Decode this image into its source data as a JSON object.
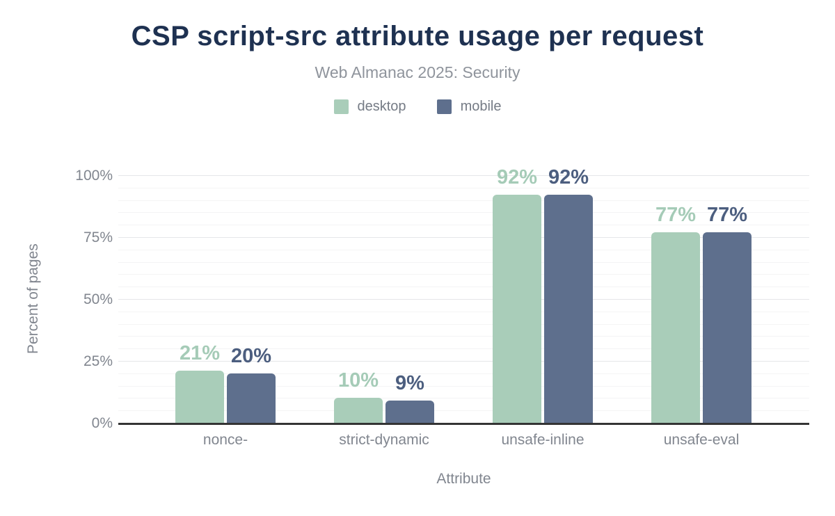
{
  "header": {
    "title": "CSP script-src attribute usage per request",
    "subtitle": "Web Almanac 2025: Security"
  },
  "legend": [
    {
      "label": "desktop",
      "color": "#a9cdb9"
    },
    {
      "label": "mobile",
      "color": "#5e6f8d"
    }
  ],
  "axes": {
    "xlabel": "Attribute",
    "ylabel": "Percent of pages"
  },
  "chart_data": {
    "type": "bar",
    "title": "CSP script-src attribute usage per request",
    "subtitle": "Web Almanac 2025: Security",
    "categories": [
      "nonce-",
      "strict-dynamic",
      "unsafe-inline",
      "unsafe-eval"
    ],
    "series": [
      {
        "name": "desktop",
        "color": "#a9cdb9",
        "label_color": "#a5cbb7",
        "values": [
          21,
          10,
          92,
          77
        ]
      },
      {
        "name": "mobile",
        "color": "#5e6f8d",
        "label_color": "#4c5e7f",
        "values": [
          20,
          9,
          92,
          77
        ]
      }
    ],
    "value_suffix": "%",
    "xlabel": "Attribute",
    "ylabel": "Percent of pages",
    "ylim": [
      0,
      100
    ],
    "yticks": [
      {
        "value": 0,
        "label": "0%"
      },
      {
        "value": 25,
        "label": "25%"
      },
      {
        "value": 50,
        "label": "50%"
      },
      {
        "value": 75,
        "label": "75%"
      },
      {
        "value": 100,
        "label": "100%"
      }
    ],
    "grid": {
      "minor_step": 5,
      "major_step": 25,
      "visible": true
    },
    "legend_position": "top"
  },
  "colors": {
    "title": "#1e3151",
    "subtitle": "#8f949c",
    "axis_text": "#81868f",
    "baseline": "#343434",
    "grid_minor": "#f4f4f5",
    "grid_major": "#e5e6e9",
    "background": "#ffffff"
  }
}
